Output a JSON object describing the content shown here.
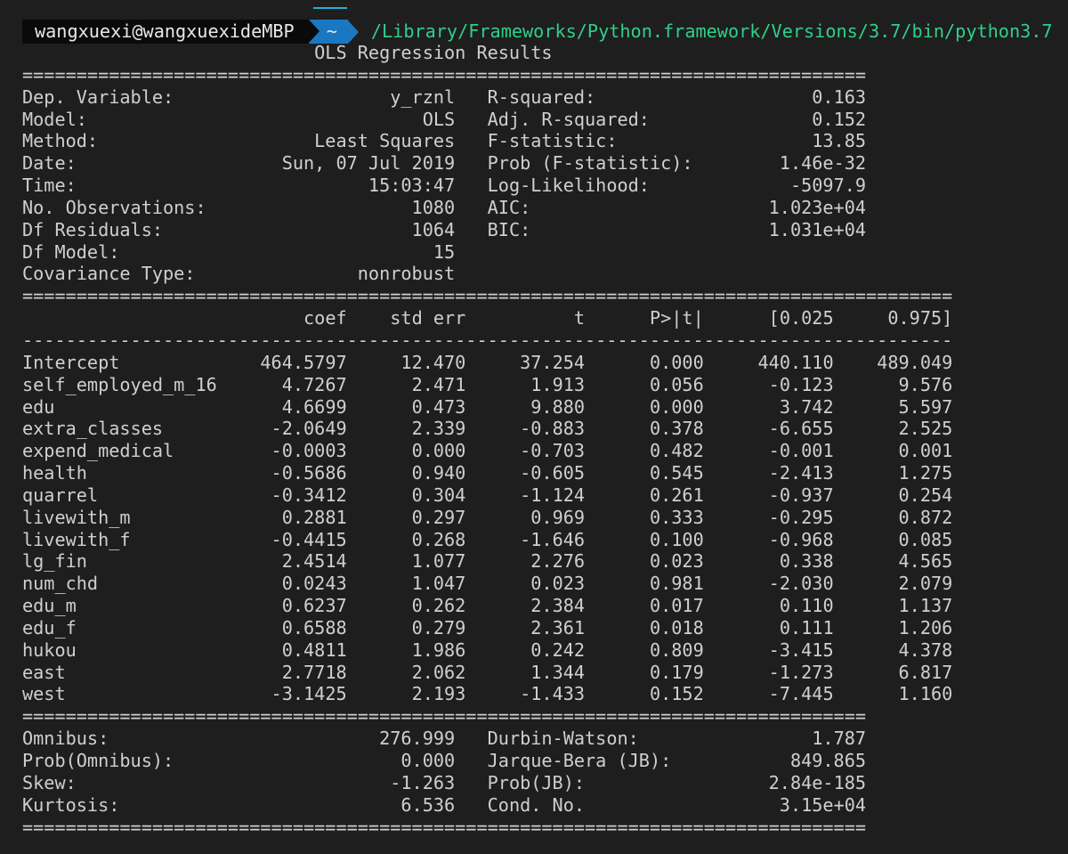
{
  "prompt": {
    "user_host": "wangxuexi@wangxuexideMBP",
    "cwd": "~",
    "command": "/Library/Frameworks/Python.framework/Versions/3.7/bin/python3.7"
  },
  "report": {
    "title": "OLS Regression Results",
    "sep_eq_78": "==============================================================================",
    "sep_eq_86": "======================================================================================",
    "sep_dash_86": "--------------------------------------------------------------------------------------",
    "summary_rows": [
      {
        "label": "Dep. Variable:",
        "value": "y_rznl",
        "label2": "R-squared:",
        "value2": "0.163"
      },
      {
        "label": "Model:",
        "value": "OLS",
        "label2": "Adj. R-squared:",
        "value2": "0.152"
      },
      {
        "label": "Method:",
        "value": "Least Squares",
        "label2": "F-statistic:",
        "value2": "13.85"
      },
      {
        "label": "Date:",
        "value": "Sun, 07 Jul 2019",
        "label2": "Prob (F-statistic):",
        "value2": "1.46e-32"
      },
      {
        "label": "Time:",
        "value": "15:03:47",
        "label2": "Log-Likelihood:",
        "value2": "-5097.9"
      },
      {
        "label": "No. Observations:",
        "value": "1080",
        "label2": "AIC:",
        "value2": "1.023e+04"
      },
      {
        "label": "Df Residuals:",
        "value": "1064",
        "label2": "BIC:",
        "value2": "1.031e+04"
      },
      {
        "label": "Df Model:",
        "value": "15",
        "label2": "",
        "value2": ""
      },
      {
        "label": "Covariance Type:",
        "value": "nonrobust",
        "label2": "",
        "value2": ""
      }
    ],
    "coef_header": [
      "",
      "coef",
      "std err",
      "t",
      "P>|t|",
      "[0.025",
      "0.975]"
    ],
    "coef_rows": [
      [
        "Intercept",
        "464.5797",
        "12.470",
        "37.254",
        "0.000",
        "440.110",
        "489.049"
      ],
      [
        "self_employed_m_16",
        "4.7267",
        "2.471",
        "1.913",
        "0.056",
        "-0.123",
        "9.576"
      ],
      [
        "edu",
        "4.6699",
        "0.473",
        "9.880",
        "0.000",
        "3.742",
        "5.597"
      ],
      [
        "extra_classes",
        "-2.0649",
        "2.339",
        "-0.883",
        "0.378",
        "-6.655",
        "2.525"
      ],
      [
        "expend_medical",
        "-0.0003",
        "0.000",
        "-0.703",
        "0.482",
        "-0.001",
        "0.001"
      ],
      [
        "health",
        "-0.5686",
        "0.940",
        "-0.605",
        "0.545",
        "-2.413",
        "1.275"
      ],
      [
        "quarrel",
        "-0.3412",
        "0.304",
        "-1.124",
        "0.261",
        "-0.937",
        "0.254"
      ],
      [
        "livewith_m",
        "0.2881",
        "0.297",
        "0.969",
        "0.333",
        "-0.295",
        "0.872"
      ],
      [
        "livewith_f",
        "-0.4415",
        "0.268",
        "-1.646",
        "0.100",
        "-0.968",
        "0.085"
      ],
      [
        "lg_fin",
        "2.4514",
        "1.077",
        "2.276",
        "0.023",
        "0.338",
        "4.565"
      ],
      [
        "num_chd",
        "0.0243",
        "1.047",
        "0.023",
        "0.981",
        "-2.030",
        "2.079"
      ],
      [
        "edu_m",
        "0.6237",
        "0.262",
        "2.384",
        "0.017",
        "0.110",
        "1.137"
      ],
      [
        "edu_f",
        "0.6588",
        "0.279",
        "2.361",
        "0.018",
        "0.111",
        "1.206"
      ],
      [
        "hukou",
        "0.4811",
        "1.986",
        "0.242",
        "0.809",
        "-3.415",
        "4.378"
      ],
      [
        "east",
        "2.7718",
        "2.062",
        "1.344",
        "0.179",
        "-1.273",
        "6.817"
      ],
      [
        "west",
        "-3.1425",
        "2.193",
        "-1.433",
        "0.152",
        "-7.445",
        "1.160"
      ]
    ],
    "diag_rows": [
      {
        "label": "Omnibus:",
        "value": "276.999",
        "label2": "Durbin-Watson:",
        "value2": "1.787"
      },
      {
        "label": "Prob(Omnibus):",
        "value": "0.000",
        "label2": "Jarque-Bera (JB):",
        "value2": "849.865"
      },
      {
        "label": "Skew:",
        "value": "-1.263",
        "label2": "Prob(JB):",
        "value2": "2.84e-185"
      },
      {
        "label": "Kurtosis:",
        "value": "6.536",
        "label2": "Cond. No.",
        "value2": "3.15e+04"
      }
    ]
  },
  "colors": {
    "background": "#1e1e1e",
    "text": "#cfcfcf",
    "prompt_user_bg": "#0a0a0a",
    "prompt_dir_bg": "#1a78c2",
    "command_text": "#2fcf8c",
    "accent": "#22b1d8"
  }
}
